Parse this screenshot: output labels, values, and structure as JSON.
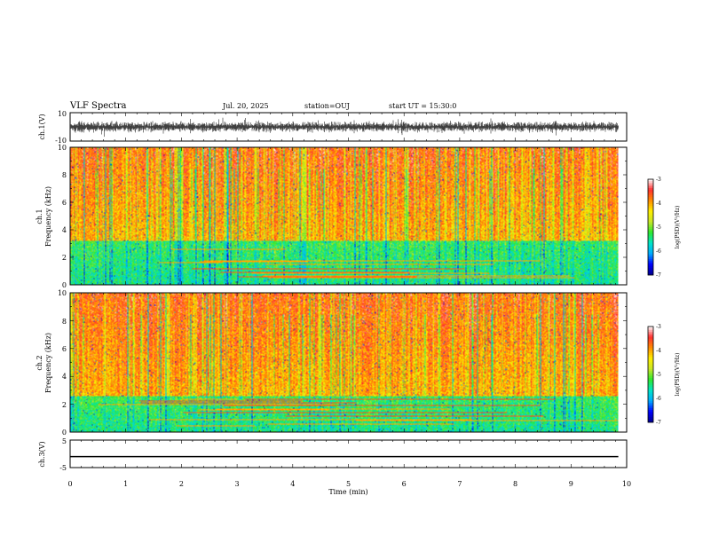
{
  "chart_data": {
    "type": "heatmap",
    "header": {
      "title": "VLF Spectra",
      "date": "Jul. 20, 2025",
      "station": "station=OUJ",
      "start": "start UT =  15:30:0"
    },
    "x_axis": {
      "label": "Time (min)",
      "range": [
        0,
        10
      ],
      "ticks": [
        "0",
        "1",
        "2",
        "3",
        "4",
        "5",
        "6",
        "7",
        "8",
        "9",
        "10"
      ],
      "data_end": 9.85
    },
    "panels": [
      {
        "id": "ch1_waveform",
        "kind": "waveform",
        "ylabel": "ch.1(V)",
        "yrange": [
          -10,
          10
        ],
        "yticks": [
          "10",
          "-10"
        ],
        "signal": "noise",
        "level": 0
      },
      {
        "id": "ch1_spectrogram",
        "kind": "spectrogram",
        "ylabel_line1": "ch.1",
        "ylabel_line2": "Frequency (kHz)",
        "yrange": [
          0,
          10
        ],
        "yticks": [
          "0",
          "2",
          "4",
          "6",
          "8",
          "10"
        ],
        "green_top_khz": 3.2,
        "seed": 11
      },
      {
        "id": "ch2_spectrogram",
        "kind": "spectrogram",
        "ylabel_line1": "ch.2",
        "ylabel_line2": "Frequency (kHz)",
        "yrange": [
          0,
          10
        ],
        "yticks": [
          "0",
          "2",
          "4",
          "6",
          "8",
          "10"
        ],
        "green_top_khz": 2.6,
        "seed": 29
      },
      {
        "id": "ch3_waveform",
        "kind": "waveform",
        "ylabel": "ch.3(V)",
        "yrange": [
          -5,
          5
        ],
        "yticks": [
          "5",
          "-5"
        ],
        "signal": "constant",
        "level": -1
      }
    ],
    "colorbars": [
      {
        "label": "log(PSD)(V²/Hz)",
        "range": [
          -7,
          -3
        ],
        "ticks": [
          "-3",
          "-4",
          "-5",
          "-6",
          "-7"
        ]
      },
      {
        "label": "log(PSD)(V²/Hz)",
        "range": [
          -7,
          -3
        ],
        "ticks": [
          "-3",
          "-4",
          "-5",
          "-6",
          "-7"
        ]
      }
    ],
    "colormap": [
      "#00008b",
      "#0000ff",
      "#00aaff",
      "#00e5c8",
      "#2ee82e",
      "#c8e628",
      "#ffee00",
      "#ff8c00",
      "#ff3030",
      "#ffffff"
    ]
  }
}
